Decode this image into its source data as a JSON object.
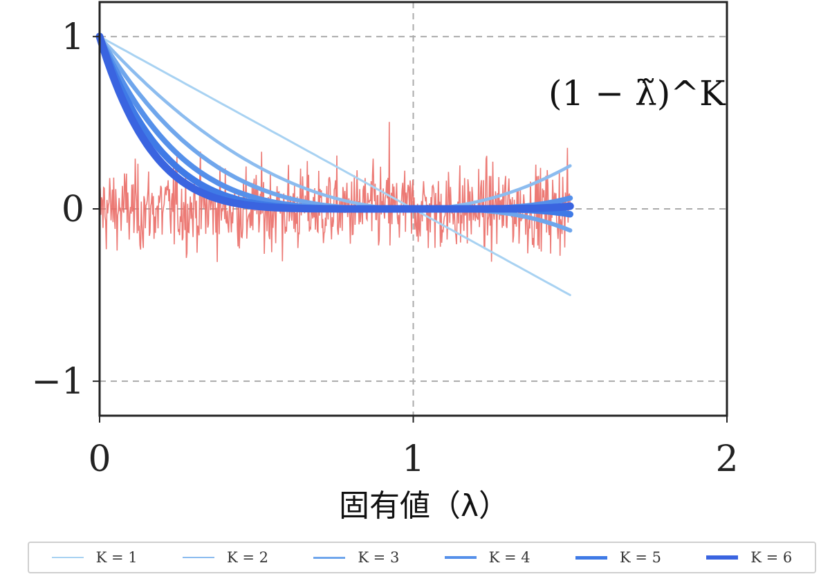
{
  "chart_data": {
    "type": "line",
    "title": "",
    "xlabel": "固有値（λ）",
    "ylabel": "",
    "xlim": [
      0,
      2
    ],
    "ylim": [
      -1.2,
      1.2
    ],
    "x_ticks": [
      "0",
      "1",
      "2"
    ],
    "y_ticks": [
      "1",
      "0",
      "−1"
    ],
    "grid": true,
    "annotation": "(1 − λ̃)^K",
    "legend_position": "bottom",
    "noise_color": "#ea6b66",
    "function": "(1 - x)^K",
    "x_range": [
      0,
      1.5
    ],
    "series": [
      {
        "name": "K = 1",
        "k": 1,
        "color": "#a8d2f2",
        "x": [
          0,
          0.5,
          1.0,
          1.5
        ],
        "values": [
          1,
          0.5,
          0,
          -0.5
        ]
      },
      {
        "name": "K = 2",
        "k": 2,
        "color": "#8cbcef",
        "x": [
          0,
          0.5,
          1.0,
          1.5
        ],
        "values": [
          1,
          0.25,
          0,
          0.25
        ]
      },
      {
        "name": "K = 3",
        "k": 3,
        "color": "#6fa6ec",
        "x": [
          0,
          0.5,
          1.0,
          1.5
        ],
        "values": [
          1,
          0.125,
          0,
          -0.125
        ]
      },
      {
        "name": "K = 4",
        "k": 4,
        "color": "#5590ea",
        "x": [
          0,
          0.5,
          1.0,
          1.5
        ],
        "values": [
          1,
          0.0625,
          0,
          0.0625
        ]
      },
      {
        "name": "K = 5",
        "k": 5,
        "color": "#3f7ae6",
        "x": [
          0,
          0.5,
          1.0,
          1.5
        ],
        "values": [
          1,
          0.031,
          0,
          -0.031
        ]
      },
      {
        "name": "K = 6",
        "k": 6,
        "color": "#3a64e0",
        "x": [
          0,
          0.5,
          1.0,
          1.5
        ],
        "values": [
          1,
          0.016,
          0,
          0.016
        ]
      }
    ]
  }
}
